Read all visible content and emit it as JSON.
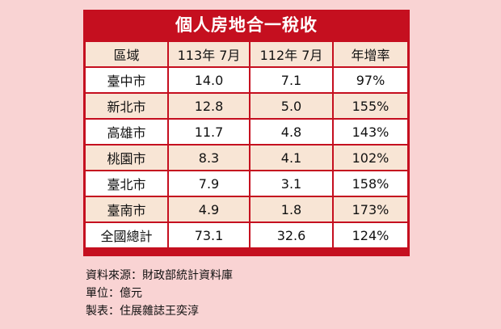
{
  "table": {
    "title": "個人房地合一稅收",
    "headers": [
      "區域",
      "113年 7月",
      "112年 7月",
      "年增率"
    ],
    "rows": [
      [
        "臺中市",
        "14.0",
        "7.1",
        "97%"
      ],
      [
        "新北市",
        "12.8",
        "5.0",
        "155%"
      ],
      [
        "高雄市",
        "11.7",
        "4.8",
        "143%"
      ],
      [
        "桃園市",
        "8.3",
        "4.1",
        "102%"
      ],
      [
        "臺北市",
        "7.9",
        "3.1",
        "158%"
      ],
      [
        "臺南市",
        "4.9",
        "1.8",
        "173%"
      ],
      [
        "全國總計",
        "73.1",
        "32.6",
        "124%"
      ]
    ]
  },
  "notes": {
    "source": "資料來源：財政部統計資料庫",
    "unit": "單位：億元",
    "credit": "製表：住展雜誌王奕淳"
  },
  "colors": {
    "page_background": "#f9d3d3",
    "table_frame": "#c50f1f",
    "title_text": "#ffffff",
    "row_tint": "#f8e5d5",
    "row_white": "#ffffff"
  }
}
